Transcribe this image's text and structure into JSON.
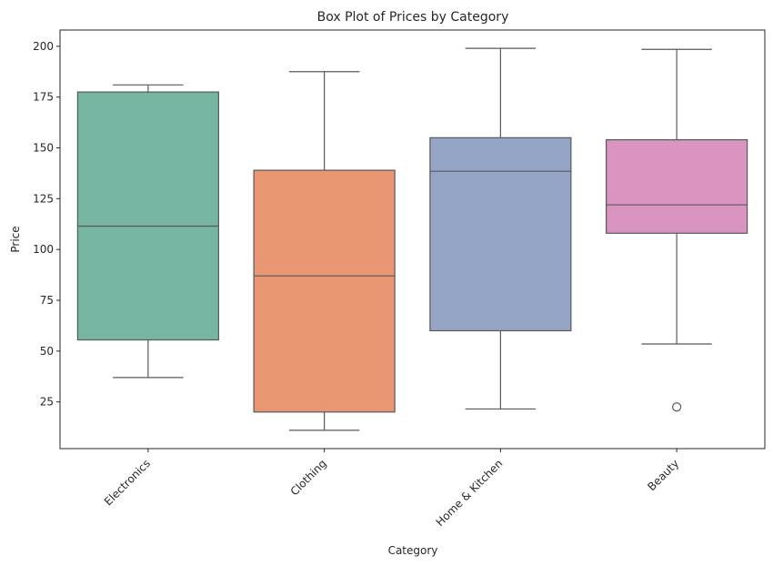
{
  "chart_data": {
    "type": "box",
    "title": "Box Plot of Prices by Category",
    "xlabel": "Category",
    "ylabel": "Price",
    "ylim": [
      2,
      208
    ],
    "yticks": [
      25,
      50,
      75,
      100,
      125,
      150,
      175,
      200
    ],
    "grid": false,
    "categories": [
      "Electronics",
      "Clothing",
      "Home & Kitchen",
      "Beauty"
    ],
    "boxes": [
      {
        "category": "Electronics",
        "color": "#75b5a1",
        "whisker_low": 37,
        "q1": 55.5,
        "median": 111.5,
        "q3": 177.5,
        "whisker_high": 181,
        "outliers": []
      },
      {
        "category": "Clothing",
        "color": "#e89674",
        "whisker_low": 11,
        "q1": 20,
        "median": 87,
        "q3": 139,
        "whisker_high": 187.5,
        "outliers": []
      },
      {
        "category": "Home & Kitchen",
        "color": "#95a5c5",
        "whisker_low": 21.5,
        "q1": 60,
        "median": 138.5,
        "q3": 155,
        "whisker_high": 199,
        "outliers": []
      },
      {
        "category": "Beauty",
        "color": "#da94c0",
        "whisker_low": 53.5,
        "q1": 108,
        "median": 122,
        "q3": 154,
        "whisker_high": 198.5,
        "outliers": [
          22.5
        ]
      }
    ]
  }
}
